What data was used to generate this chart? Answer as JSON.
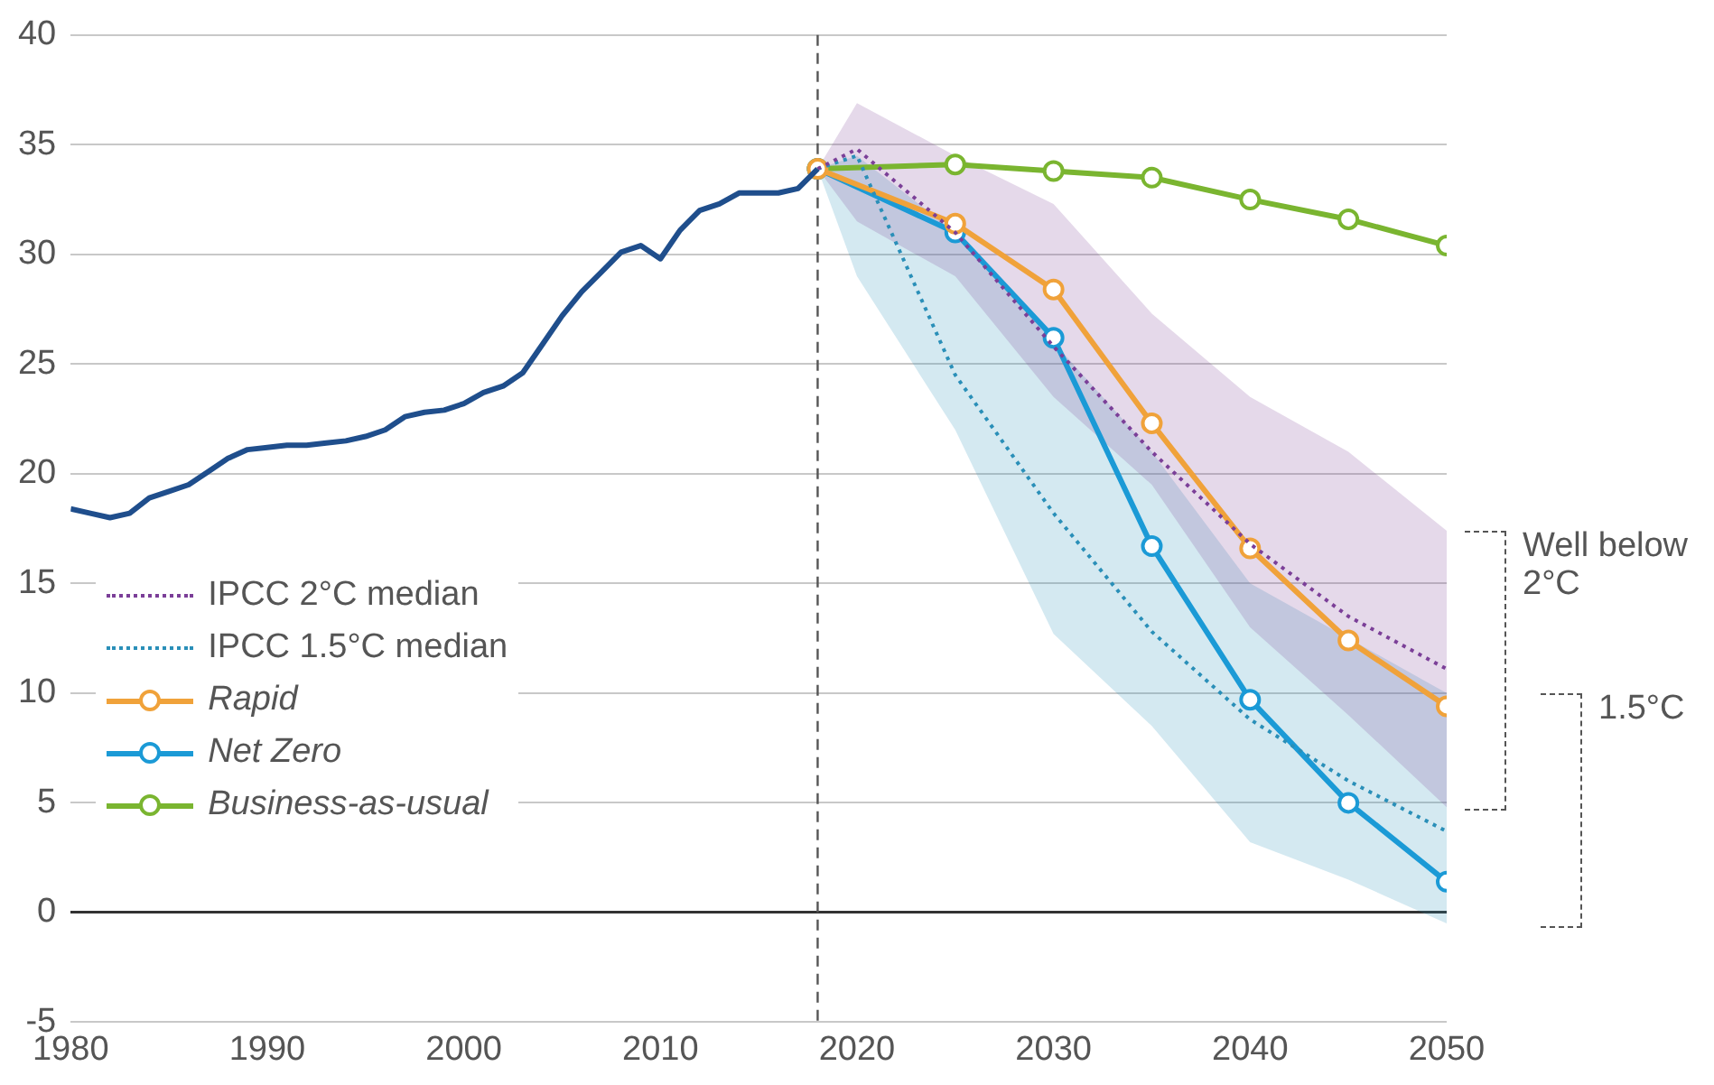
{
  "chart_data": {
    "type": "line",
    "xlim": [
      1980,
      2050
    ],
    "xticks": [
      1980,
      1990,
      2000,
      2010,
      2020,
      2030,
      2040,
      2050
    ],
    "ylim": [
      -5,
      40
    ],
    "yticks": [
      -5,
      0,
      5,
      10,
      15,
      20,
      25,
      30,
      35,
      40
    ],
    "grid": "y",
    "legend": "left",
    "annotations": [
      "Well below 2°C",
      "1.5°C"
    ],
    "ref_lines": [
      {
        "axis": "x",
        "value": 2018,
        "color": "#555555",
        "line_style": "dashed"
      }
    ],
    "series": [
      {
        "color": "#1f4e8c",
        "marker": "none",
        "line_style": "solid",
        "x": [
          1980,
          1981,
          1982,
          1983,
          1984,
          1985,
          1986,
          1987,
          1988,
          1989,
          1990,
          1991,
          1992,
          1993,
          1994,
          1995,
          1996,
          1997,
          1998,
          1999,
          2000,
          2001,
          2002,
          2003,
          2004,
          2005,
          2006,
          2007,
          2008,
          2009,
          2010,
          2011,
          2012,
          2013,
          2014,
          2015,
          2016,
          2017,
          2018
        ],
        "values": [
          18.4,
          18.2,
          18.0,
          18.2,
          18.9,
          19.2,
          19.5,
          20.1,
          20.7,
          21.1,
          21.2,
          21.3,
          21.3,
          21.4,
          21.5,
          21.7,
          22.0,
          22.6,
          22.8,
          22.9,
          23.2,
          23.7,
          24.0,
          24.6,
          25.9,
          27.2,
          28.3,
          29.2,
          30.1,
          30.4,
          29.8,
          31.1,
          32.0,
          32.3,
          32.8,
          32.8,
          32.8,
          33.0,
          33.9
        ]
      },
      {
        "name": "IPCC 2°C median",
        "color": "#7b3f98",
        "marker": "none",
        "line_style": "dotted",
        "x": [
          2018,
          2020,
          2025,
          2030,
          2035,
          2040,
          2045,
          2050
        ],
        "values": [
          33.9,
          34.8,
          31.0,
          25.8,
          21.0,
          16.8,
          13.5,
          11.1
        ],
        "lower": [
          33.9,
          31.5,
          29.0,
          23.5,
          19.5,
          13.0,
          9.0,
          4.8
        ],
        "upper": [
          33.9,
          36.9,
          34.5,
          32.3,
          27.3,
          23.5,
          21.0,
          17.4
        ]
      },
      {
        "name": "IPCC 1.5°C median",
        "color": "#2a8fb8",
        "marker": "none",
        "line_style": "dotted",
        "x": [
          2018,
          2020,
          2025,
          2030,
          2035,
          2040,
          2045,
          2050
        ],
        "values": [
          33.9,
          34.5,
          24.5,
          18.2,
          12.8,
          8.8,
          6.0,
          3.7
        ],
        "lower": [
          33.9,
          29.0,
          22.0,
          12.7,
          8.5,
          3.2,
          1.5,
          -0.5
        ],
        "upper": [
          33.9,
          34.5,
          31.0,
          26.0,
          21.0,
          15.0,
          12.5,
          10.0
        ]
      },
      {
        "name": "Rapid",
        "color": "#f0a23a",
        "marker": "circle",
        "line_style": "solid",
        "x": [
          2018,
          2025,
          2030,
          2035,
          2040,
          2045,
          2050
        ],
        "values": [
          33.9,
          31.4,
          28.4,
          22.3,
          16.6,
          12.4,
          9.4
        ]
      },
      {
        "name": "Net Zero",
        "color": "#1b9ad6",
        "marker": "circle",
        "line_style": "solid",
        "x": [
          2018,
          2025,
          2030,
          2035,
          2040,
          2045,
          2050
        ],
        "values": [
          33.9,
          31.0,
          26.2,
          16.7,
          9.7,
          5.0,
          1.4
        ]
      },
      {
        "name": "Business-as-usual",
        "color": "#7ab530",
        "marker": "circle",
        "line_style": "solid",
        "x": [
          2018,
          2025,
          2030,
          2035,
          2040,
          2045,
          2050
        ],
        "values": [
          33.9,
          34.1,
          33.8,
          33.5,
          32.5,
          31.6,
          30.4
        ]
      }
    ]
  }
}
